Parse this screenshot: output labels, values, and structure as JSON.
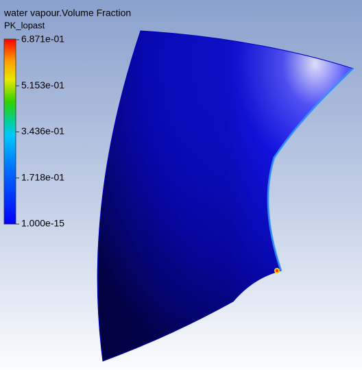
{
  "legend": {
    "variable": "water vapour.Volume Fraction",
    "location": "PK_lopast",
    "labels": [
      "6.871e-01",
      "5.153e-01",
      "3.436e-01",
      "1.718e-01",
      "1.000e-15"
    ]
  }
}
